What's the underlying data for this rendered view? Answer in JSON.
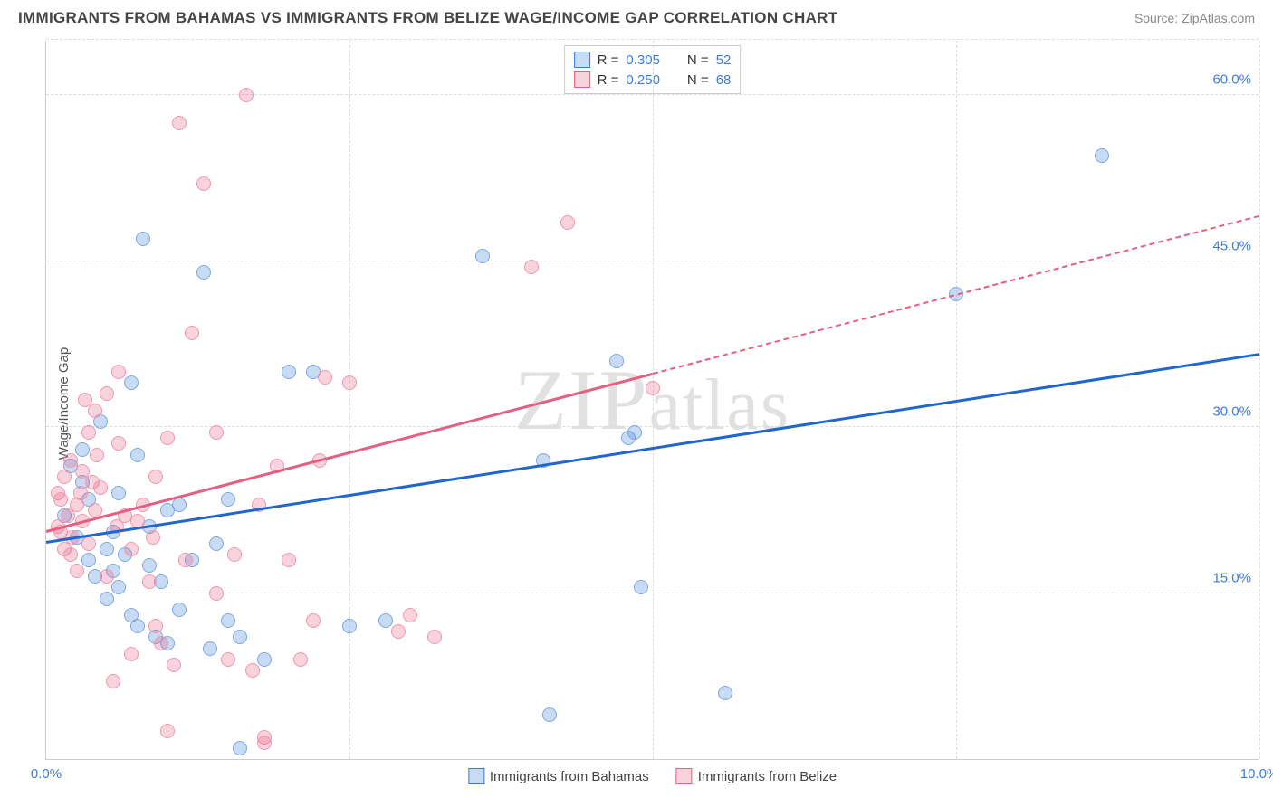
{
  "header": {
    "title": "IMMIGRANTS FROM BAHAMAS VS IMMIGRANTS FROM BELIZE WAGE/INCOME GAP CORRELATION CHART",
    "source": "Source: ZipAtlas.com"
  },
  "chart": {
    "type": "scatter",
    "y_label": "Wage/Income Gap",
    "watermark": "ZIPatlas",
    "background_color": "#ffffff",
    "grid_color": "#dddddd",
    "axis_color": "#cccccc",
    "tick_color": "#3b7dd8",
    "xlim": [
      0,
      10
    ],
    "ylim": [
      0,
      65
    ],
    "x_ticks": [
      {
        "v": 0,
        "label": "0.0%"
      },
      {
        "v": 10,
        "label": "10.0%"
      }
    ],
    "y_ticks": [
      {
        "v": 15,
        "label": "15.0%"
      },
      {
        "v": 30,
        "label": "30.0%"
      },
      {
        "v": 45,
        "label": "45.0%"
      },
      {
        "v": 60,
        "label": "60.0%"
      }
    ],
    "x_grid": [
      2.5,
      5.0,
      7.5,
      10.0
    ],
    "y_grid": [
      15,
      30,
      45,
      60,
      65
    ],
    "stats_box": [
      {
        "swatch_fill": "rgba(59,125,216,0.28)",
        "swatch_border": "#3b7dd8",
        "r_label": "R =",
        "r_val": "0.305",
        "n_label": "N =",
        "n_val": "52"
      },
      {
        "swatch_fill": "rgba(230,95,130,0.28)",
        "swatch_border": "#e65f82",
        "r_label": "R =",
        "r_val": "0.250",
        "n_label": "N =",
        "n_val": "68"
      }
    ],
    "bottom_legend": [
      {
        "swatch_fill": "rgba(59,125,216,0.28)",
        "swatch_border": "#3b7dd8",
        "label": "Immigrants from Bahamas"
      },
      {
        "swatch_fill": "rgba(230,95,130,0.28)",
        "swatch_border": "#e65f82",
        "label": "Immigrants from Belize"
      }
    ],
    "series": [
      {
        "name": "bahamas",
        "fill": "rgba(59,125,216,0.28)",
        "border": "#7fa8e0",
        "marker_size": 16,
        "trend": {
          "x1": 0,
          "y1": 19.5,
          "x2": 10,
          "y2": 36.5,
          "color": "#1f66d0",
          "width": 2.5,
          "dash_after_x": null
        },
        "points": [
          {
            "x": 0.15,
            "y": 22.0
          },
          {
            "x": 0.2,
            "y": 26.5
          },
          {
            "x": 0.3,
            "y": 28.0
          },
          {
            "x": 0.35,
            "y": 23.5
          },
          {
            "x": 0.35,
            "y": 18.0
          },
          {
            "x": 0.4,
            "y": 16.5
          },
          {
            "x": 0.45,
            "y": 30.5
          },
          {
            "x": 0.5,
            "y": 19.0
          },
          {
            "x": 0.5,
            "y": 14.5
          },
          {
            "x": 0.55,
            "y": 17.0
          },
          {
            "x": 0.6,
            "y": 24.0
          },
          {
            "x": 0.6,
            "y": 15.5
          },
          {
            "x": 0.7,
            "y": 34.0
          },
          {
            "x": 0.75,
            "y": 12.0
          },
          {
            "x": 0.75,
            "y": 27.5
          },
          {
            "x": 0.8,
            "y": 47.0
          },
          {
            "x": 0.85,
            "y": 21.0
          },
          {
            "x": 0.9,
            "y": 11.0
          },
          {
            "x": 0.95,
            "y": 16.0
          },
          {
            "x": 1.0,
            "y": 10.5
          },
          {
            "x": 1.0,
            "y": 22.5
          },
          {
            "x": 1.1,
            "y": 13.5
          },
          {
            "x": 1.1,
            "y": 23.0
          },
          {
            "x": 1.3,
            "y": 44.0
          },
          {
            "x": 1.35,
            "y": 10.0
          },
          {
            "x": 1.5,
            "y": 12.5
          },
          {
            "x": 1.5,
            "y": 23.5
          },
          {
            "x": 1.6,
            "y": 11.0
          },
          {
            "x": 1.6,
            "y": 1.0
          },
          {
            "x": 2.0,
            "y": 35.0
          },
          {
            "x": 2.2,
            "y": 35.0
          },
          {
            "x": 2.5,
            "y": 12.0
          },
          {
            "x": 2.8,
            "y": 12.5
          },
          {
            "x": 3.6,
            "y": 45.5
          },
          {
            "x": 4.1,
            "y": 27.0
          },
          {
            "x": 4.15,
            "y": 4.0
          },
          {
            "x": 4.7,
            "y": 36.0
          },
          {
            "x": 4.8,
            "y": 29.0
          },
          {
            "x": 4.85,
            "y": 29.5
          },
          {
            "x": 4.9,
            "y": 15.5
          },
          {
            "x": 5.6,
            "y": 6.0
          },
          {
            "x": 7.5,
            "y": 42.0
          },
          {
            "x": 8.7,
            "y": 54.5
          },
          {
            "x": 0.25,
            "y": 20.0
          },
          {
            "x": 0.3,
            "y": 25.0
          },
          {
            "x": 0.55,
            "y": 20.5
          },
          {
            "x": 0.65,
            "y": 18.5
          },
          {
            "x": 0.7,
            "y": 13.0
          },
          {
            "x": 0.85,
            "y": 17.5
          },
          {
            "x": 1.2,
            "y": 18.0
          },
          {
            "x": 1.4,
            "y": 19.5
          },
          {
            "x": 1.8,
            "y": 9.0
          }
        ]
      },
      {
        "name": "belize",
        "fill": "rgba(230,95,130,0.28)",
        "border": "#f098ad",
        "marker_size": 16,
        "trend": {
          "x1": 0,
          "y1": 20.5,
          "x2": 10,
          "y2": 49.0,
          "color": "#e65f82",
          "width": 2.5,
          "dash_after_x": 5.0
        },
        "points": [
          {
            "x": 0.1,
            "y": 21.0
          },
          {
            "x": 0.1,
            "y": 24.0
          },
          {
            "x": 0.12,
            "y": 23.5
          },
          {
            "x": 0.15,
            "y": 25.5
          },
          {
            "x": 0.15,
            "y": 19.0
          },
          {
            "x": 0.18,
            "y": 22.0
          },
          {
            "x": 0.2,
            "y": 27.0
          },
          {
            "x": 0.2,
            "y": 18.5
          },
          {
            "x": 0.22,
            "y": 20.0
          },
          {
            "x": 0.25,
            "y": 23.0
          },
          {
            "x": 0.25,
            "y": 17.0
          },
          {
            "x": 0.3,
            "y": 26.0
          },
          {
            "x": 0.3,
            "y": 21.5
          },
          {
            "x": 0.32,
            "y": 32.5
          },
          {
            "x": 0.35,
            "y": 29.5
          },
          {
            "x": 0.35,
            "y": 19.5
          },
          {
            "x": 0.38,
            "y": 25.0
          },
          {
            "x": 0.4,
            "y": 31.5
          },
          {
            "x": 0.4,
            "y": 22.5
          },
          {
            "x": 0.45,
            "y": 24.5
          },
          {
            "x": 0.5,
            "y": 16.5
          },
          {
            "x": 0.5,
            "y": 33.0
          },
          {
            "x": 0.55,
            "y": 7.0
          },
          {
            "x": 0.6,
            "y": 28.5
          },
          {
            "x": 0.6,
            "y": 35.0
          },
          {
            "x": 0.65,
            "y": 22.0
          },
          {
            "x": 0.7,
            "y": 19.0
          },
          {
            "x": 0.7,
            "y": 9.5
          },
          {
            "x": 0.75,
            "y": 21.5
          },
          {
            "x": 0.8,
            "y": 23.0
          },
          {
            "x": 0.85,
            "y": 16.0
          },
          {
            "x": 0.9,
            "y": 25.5
          },
          {
            "x": 0.9,
            "y": 12.0
          },
          {
            "x": 0.95,
            "y": 10.5
          },
          {
            "x": 1.0,
            "y": 29.0
          },
          {
            "x": 1.0,
            "y": 2.5
          },
          {
            "x": 1.05,
            "y": 8.5
          },
          {
            "x": 1.1,
            "y": 57.5
          },
          {
            "x": 1.15,
            "y": 18.0
          },
          {
            "x": 1.2,
            "y": 38.5
          },
          {
            "x": 1.3,
            "y": 52.0
          },
          {
            "x": 1.4,
            "y": 29.5
          },
          {
            "x": 1.4,
            "y": 15.0
          },
          {
            "x": 1.5,
            "y": 9.0
          },
          {
            "x": 1.55,
            "y": 18.5
          },
          {
            "x": 1.65,
            "y": 60.0
          },
          {
            "x": 1.7,
            "y": 8.0
          },
          {
            "x": 1.75,
            "y": 23.0
          },
          {
            "x": 1.8,
            "y": 2.0
          },
          {
            "x": 1.8,
            "y": 1.5
          },
          {
            "x": 1.9,
            "y": 26.5
          },
          {
            "x": 2.0,
            "y": 18.0
          },
          {
            "x": 2.1,
            "y": 9.0
          },
          {
            "x": 2.2,
            "y": 12.5
          },
          {
            "x": 2.25,
            "y": 27.0
          },
          {
            "x": 2.3,
            "y": 34.5
          },
          {
            "x": 2.5,
            "y": 34.0
          },
          {
            "x": 2.9,
            "y": 11.5
          },
          {
            "x": 3.0,
            "y": 13.0
          },
          {
            "x": 3.2,
            "y": 11.0
          },
          {
            "x": 4.0,
            "y": 44.5
          },
          {
            "x": 4.3,
            "y": 48.5
          },
          {
            "x": 5.0,
            "y": 33.5
          },
          {
            "x": 0.12,
            "y": 20.5
          },
          {
            "x": 0.28,
            "y": 24.0
          },
          {
            "x": 0.42,
            "y": 27.5
          },
          {
            "x": 0.58,
            "y": 21.0
          },
          {
            "x": 0.88,
            "y": 20.0
          }
        ]
      }
    ]
  }
}
